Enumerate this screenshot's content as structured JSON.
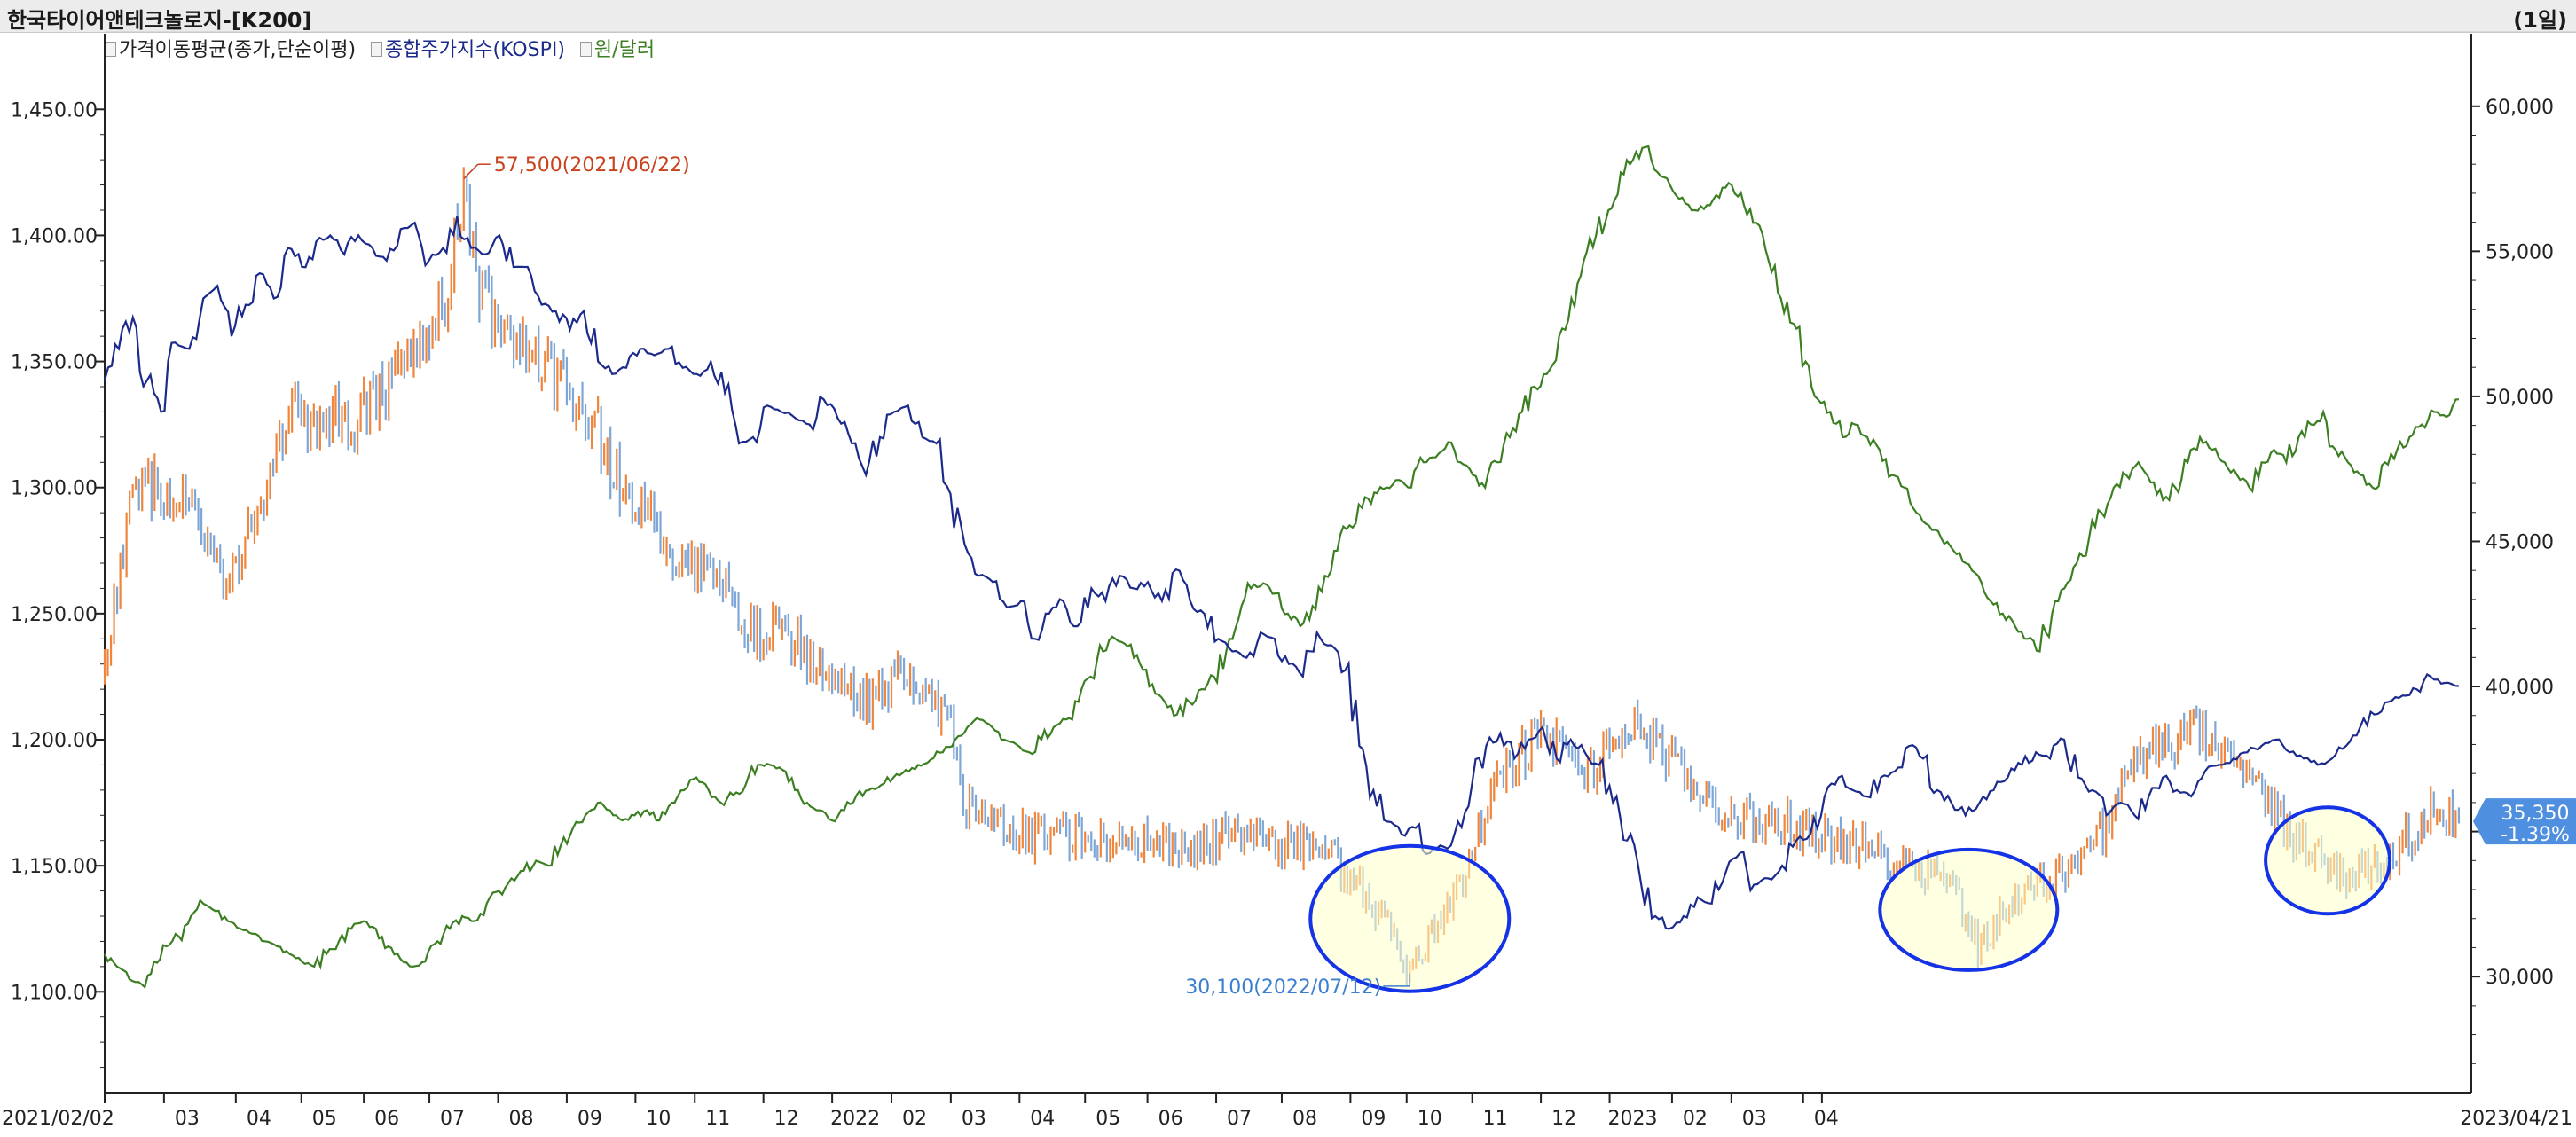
{
  "window": {
    "title": "한국타이어앤테크놀로지-[K200]",
    "period": "(1일)"
  },
  "legend": [
    {
      "label": "가격이동평균(종가,단순이평)",
      "color": "#222222"
    },
    {
      "label": "종합주가지수(KOSPI)",
      "color": "#1c2a8c"
    },
    {
      "label": "원/달러",
      "color": "#3b7f22"
    }
  ],
  "chart_data": {
    "type": "line",
    "x_tick_labels": [
      "2021/02/02",
      "03",
      "04",
      "05",
      "06",
      "07",
      "08",
      "09",
      "10",
      "11",
      "12",
      "2022",
      "02",
      "03",
      "04",
      "05",
      "06",
      "07",
      "08",
      "09",
      "10",
      "11",
      "12",
      "2023",
      "02",
      "03",
      "04",
      "2023/04/21"
    ],
    "left_axis": {
      "ticks": [
        "1,450.00",
        "1,400.00",
        "1,350.00",
        "1,300.00",
        "1,250.00",
        "1,200.00",
        "1,150.00",
        "1,100.00"
      ],
      "range": [
        1060,
        1480
      ]
    },
    "right_axis": {
      "ticks": [
        "60,000",
        "55,000",
        "50,000",
        "45,000",
        "40,000",
        "35,000",
        "30,000"
      ],
      "range": [
        26000,
        62500
      ]
    },
    "stock_price": {
      "high": "57,500(2021/06/22)",
      "low": "30,100(2022/07/12)",
      "last": "35,350",
      "change": "-1.39%",
      "trend": [
        [
          0,
          40500
        ],
        [
          5,
          44000
        ],
        [
          10,
          47000
        ],
        [
          25,
          46500
        ],
        [
          40,
          43500
        ],
        [
          60,
          49500
        ],
        [
          80,
          49000
        ],
        [
          95,
          51000
        ],
        [
          110,
          53500
        ],
        [
          115,
          57500
        ],
        [
          120,
          53500
        ],
        [
          135,
          51500
        ],
        [
          155,
          49500
        ],
        [
          165,
          47000
        ],
        [
          175,
          45500
        ],
        [
          185,
          44000
        ],
        [
          195,
          44000
        ],
        [
          210,
          41500
        ],
        [
          215,
          42000
        ],
        [
          225,
          41000
        ],
        [
          235,
          40000
        ],
        [
          245,
          39500
        ],
        [
          255,
          40500
        ],
        [
          265,
          39500
        ],
        [
          270,
          39000
        ],
        [
          275,
          36000
        ],
        [
          285,
          35200
        ],
        [
          300,
          34800
        ],
        [
          330,
          34700
        ],
        [
          350,
          34500
        ],
        [
          365,
          35000
        ],
        [
          380,
          34500
        ],
        [
          395,
          34000
        ],
        [
          400,
          33200
        ],
        [
          410,
          32000
        ],
        [
          418,
          30100
        ],
        [
          425,
          31500
        ],
        [
          435,
          33500
        ],
        [
          445,
          36500
        ],
        [
          460,
          38500
        ],
        [
          475,
          37000
        ],
        [
          490,
          38800
        ],
        [
          505,
          37000
        ],
        [
          520,
          35500
        ],
        [
          540,
          35200
        ],
        [
          560,
          34500
        ],
        [
          575,
          34000
        ],
        [
          590,
          33500
        ],
        [
          597,
          32000
        ],
        [
          600,
          31000
        ],
        [
          610,
          32500
        ],
        [
          625,
          33500
        ],
        [
          640,
          35000
        ],
        [
          650,
          37500
        ],
        [
          660,
          38000
        ],
        [
          670,
          38500
        ],
        [
          680,
          37500
        ],
        [
          690,
          36500
        ],
        [
          700,
          35000
        ],
        [
          710,
          34000
        ],
        [
          720,
          33500
        ],
        [
          730,
          34000
        ],
        [
          740,
          35000
        ],
        [
          747,
          35800
        ],
        [
          754,
          35350
        ]
      ]
    },
    "kospi": {
      "values": [
        3050,
        3100,
        3150,
        3050,
        3000,
        3110,
        3100,
        3180,
        3200,
        3120,
        3170,
        3220,
        3180,
        3260,
        3230,
        3270,
        3280,
        3250,
        3280,
        3260,
        3240,
        3290,
        3300,
        3240,
        3260,
        3310,
        3260,
        3250,
        3280,
        3230,
        3230,
        3170,
        3160,
        3130,
        3160,
        3080,
        3060,
        3070,
        3100,
        3090,
        3100,
        3070,
        3060,
        3080,
        3030,
        2950,
        2960,
        3010,
        3000,
        2990,
        2980,
        3020,
        2990,
        2950,
        2900,
        2960,
        3000,
        3010,
        2960,
        2950,
        2870,
        2790,
        2740,
        2730,
        2690,
        2700,
        2640,
        2680,
        2700,
        2660,
        2720,
        2700,
        2740,
        2720,
        2730,
        2700,
        2750,
        2700,
        2680,
        2640,
        2620,
        2610,
        2650,
        2640,
        2600,
        2580,
        2650,
        2630,
        2590,
        2470,
        2400,
        2350,
        2330,
        2340,
        2300,
        2310,
        2350,
        2410,
        2470,
        2490,
        2450,
        2480,
        2500,
        2450,
        2480,
        2460,
        2440,
        2380,
        2320,
        2250,
        2200,
        2180,
        2200,
        2230,
        2220,
        2270,
        2300,
        2250,
        2260,
        2280,
        2320,
        2330,
        2390,
        2420,
        2400,
        2390,
        2420,
        2430,
        2470,
        2450,
        2400,
        2380,
        2360,
        2380,
        2400,
        2420,
        2440,
        2460,
        2450,
        2480,
        2420,
        2400,
        2360,
        2380,
        2360,
        2390,
        2420,
        2400,
        2390,
        2430,
        2440,
        2450,
        2460,
        2470,
        2480,
        2460,
        2450,
        2440,
        2450,
        2470,
        2500,
        2520,
        2540,
        2550,
        2560,
        2580,
        2570,
        2565
      ]
    },
    "usd_krw": {
      "values": [
        1115,
        1110,
        1105,
        1103,
        1112,
        1118,
        1122,
        1130,
        1135,
        1132,
        1128,
        1125,
        1123,
        1120,
        1118,
        1115,
        1112,
        1110,
        1115,
        1120,
        1125,
        1128,
        1125,
        1118,
        1113,
        1110,
        1112,
        1120,
        1125,
        1130,
        1128,
        1135,
        1140,
        1145,
        1148,
        1152,
        1150,
        1158,
        1165,
        1170,
        1175,
        1172,
        1168,
        1170,
        1172,
        1168,
        1175,
        1180,
        1185,
        1180,
        1175,
        1178,
        1182,
        1190,
        1190,
        1188,
        1180,
        1175,
        1172,
        1168,
        1172,
        1178,
        1180,
        1182,
        1185,
        1188,
        1190,
        1192,
        1195,
        1200,
        1205,
        1208,
        1205,
        1200,
        1198,
        1195,
        1200,
        1205,
        1208,
        1215,
        1225,
        1235,
        1240,
        1237,
        1230,
        1222,
        1215,
        1210,
        1215,
        1220,
        1225,
        1235,
        1248,
        1260,
        1262,
        1258,
        1250,
        1245,
        1253,
        1265,
        1275,
        1285,
        1292,
        1298,
        1300,
        1303,
        1300,
        1310,
        1312,
        1318,
        1310,
        1305,
        1300,
        1310,
        1320,
        1330,
        1340,
        1345,
        1360,
        1375,
        1390,
        1400,
        1410,
        1425,
        1430,
        1435,
        1425,
        1420,
        1415,
        1410,
        1412,
        1415,
        1420,
        1412,
        1405,
        1390,
        1375,
        1365,
        1350,
        1335,
        1330,
        1320,
        1325,
        1320,
        1315,
        1305,
        1300,
        1290,
        1285,
        1280,
        1275,
        1270,
        1265,
        1255,
        1250,
        1245,
        1240,
        1235,
        1250,
        1260,
        1270,
        1280,
        1290,
        1300,
        1305,
        1310,
        1302,
        1295,
        1300,
        1310,
        1320,
        1315,
        1310,
        1305,
        1300,
        1310,
        1315,
        1310,
        1320,
        1325,
        1330,
        1315,
        1310,
        1305,
        1300,
        1310,
        1315,
        1320,
        1325,
        1330,
        1328,
        1335
      ]
    }
  }
}
